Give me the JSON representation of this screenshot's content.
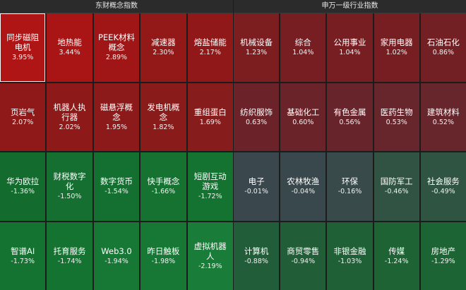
{
  "left_panel": {
    "title": "东财概念指数",
    "tiles": [
      {
        "name": "同步磁阻电机",
        "pct": "3.95%",
        "color": "#b01515",
        "selected": true
      },
      {
        "name": "地热能",
        "pct": "3.44%",
        "color": "#a91515"
      },
      {
        "name": "PEEK材料概念",
        "pct": "2.89%",
        "color": "#a01616"
      },
      {
        "name": "减速器",
        "pct": "2.30%",
        "color": "#931818"
      },
      {
        "name": "熔盐储能",
        "pct": "2.17%",
        "color": "#911818"
      },
      {
        "name": "页岩气",
        "pct": "2.07%",
        "color": "#8f1919"
      },
      {
        "name": "机器人执行器",
        "pct": "2.02%",
        "color": "#8d1919"
      },
      {
        "name": "磁悬浮概念",
        "pct": "1.95%",
        "color": "#8c1a1a"
      },
      {
        "name": "发电机概念",
        "pct": "1.82%",
        "color": "#891b1b"
      },
      {
        "name": "重组蛋白",
        "pct": "1.69%",
        "color": "#861c1c"
      },
      {
        "name": "华为欧拉",
        "pct": "-1.36%",
        "color": "#136c2e"
      },
      {
        "name": "财税数字化",
        "pct": "-1.50%",
        "color": "#146f30"
      },
      {
        "name": "数字货币",
        "pct": "-1.54%",
        "color": "#147030"
      },
      {
        "name": "快手概念",
        "pct": "-1.66%",
        "color": "#157231"
      },
      {
        "name": "短剧互动游戏",
        "pct": "-1.72%",
        "color": "#157332"
      },
      {
        "name": "智谱AI",
        "pct": "-1.73%",
        "color": "#157332"
      },
      {
        "name": "托育服务",
        "pct": "-1.74%",
        "color": "#157332"
      },
      {
        "name": "Web3.0",
        "pct": "-1.94%",
        "color": "#177735"
      },
      {
        "name": "昨日触板",
        "pct": "-1.98%",
        "color": "#177836"
      },
      {
        "name": "虚拟机器人",
        "pct": "-2.19%",
        "color": "#197c38"
      }
    ]
  },
  "right_panel": {
    "title": "申万一级行业指数",
    "tiles": [
      {
        "name": "机械设备",
        "pct": "1.23%",
        "color": "#7c1d20"
      },
      {
        "name": "综合",
        "pct": "1.04%",
        "color": "#771e22"
      },
      {
        "name": "公用事业",
        "pct": "1.04%",
        "color": "#771e22"
      },
      {
        "name": "家用电器",
        "pct": "1.02%",
        "color": "#761e22"
      },
      {
        "name": "石油石化",
        "pct": "0.86%",
        "color": "#722024"
      },
      {
        "name": "纺织服饰",
        "pct": "0.63%",
        "color": "#6b2329"
      },
      {
        "name": "基础化工",
        "pct": "0.60%",
        "color": "#6a2329"
      },
      {
        "name": "有色金属",
        "pct": "0.56%",
        "color": "#68242b"
      },
      {
        "name": "医药生物",
        "pct": "0.53%",
        "color": "#67252c"
      },
      {
        "name": "建筑材料",
        "pct": "0.52%",
        "color": "#67252c"
      },
      {
        "name": "电子",
        "pct": "-0.01%",
        "color": "#3a474d"
      },
      {
        "name": "农林牧渔",
        "pct": "-0.04%",
        "color": "#39484c"
      },
      {
        "name": "环保",
        "pct": "-0.16%",
        "color": "#384b4a"
      },
      {
        "name": "国防军工",
        "pct": "-0.46%",
        "color": "#305343"
      },
      {
        "name": "社会服务",
        "pct": "-0.49%",
        "color": "#2f5442"
      },
      {
        "name": "计算机",
        "pct": "-0.88%",
        "color": "#225d39"
      },
      {
        "name": "商贸零售",
        "pct": "-0.94%",
        "color": "#215e38"
      },
      {
        "name": "非银金融",
        "pct": "-1.03%",
        "color": "#1f6036"
      },
      {
        "name": "传媒",
        "pct": "-1.24%",
        "color": "#1d6334"
      },
      {
        "name": "房地产",
        "pct": "-1.29%",
        "color": "#1c6433"
      }
    ]
  }
}
